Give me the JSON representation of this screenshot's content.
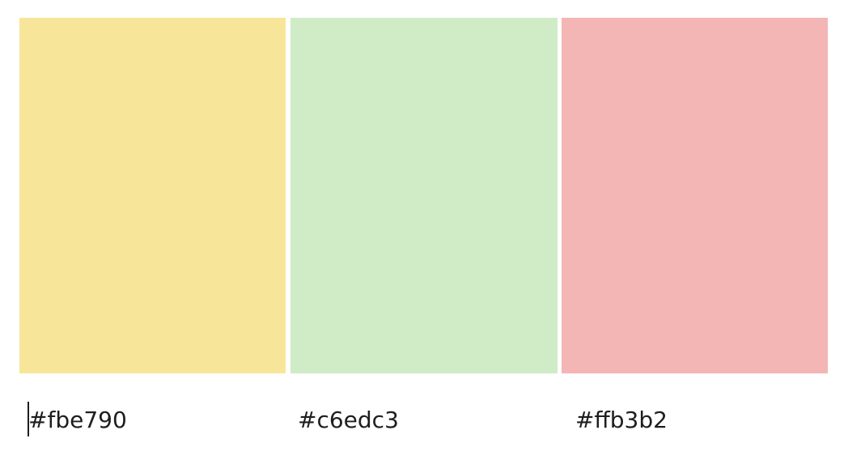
{
  "swatches": [
    {
      "label": "#fbe790",
      "fill": "#f7e69a"
    },
    {
      "label": "#c6edc3",
      "fill": "#cfecc7"
    },
    {
      "label": "#ffb3b2",
      "fill": "#f4b5b5"
    }
  ],
  "colors": {
    "text": "#1e1e1e",
    "background": "#ffffff"
  }
}
